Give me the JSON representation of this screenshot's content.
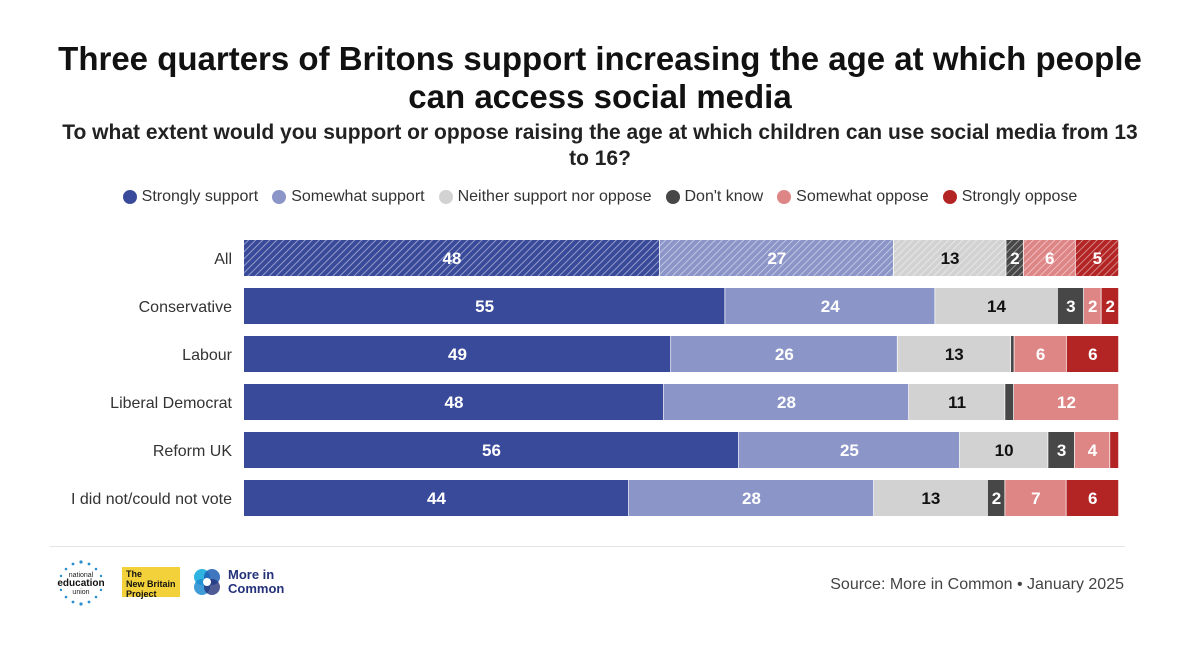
{
  "title": "Three quarters of Britons support increasing the age at which people can access social media",
  "subtitle": "To what extent would you support or oppose raising the age at which children can use social media from 13 to 16?",
  "source": "Source: More in Common • January 2025",
  "logos": {
    "neu": [
      "national",
      "education",
      "union"
    ],
    "nbp": [
      "The",
      "New Britain",
      "Project"
    ],
    "mic": [
      "More in",
      "Common"
    ]
  },
  "chart_data": {
    "type": "bar",
    "orientation": "horizontal-stacked-100",
    "categories": [
      "All",
      "Conservative",
      "Labour",
      "Liberal Democrat",
      "Reform UK",
      "I did not/could not vote"
    ],
    "series": [
      {
        "name": "Strongly support",
        "color": "#3a4a9a",
        "values": [
          48,
          55,
          49,
          48,
          56,
          44
        ]
      },
      {
        "name": "Somewhat support",
        "color": "#8b95c8",
        "values": [
          27,
          24,
          26,
          28,
          25,
          28
        ]
      },
      {
        "name": "Neither support nor oppose",
        "color": "#d2d2d2",
        "values": [
          13,
          14,
          13,
          11,
          10,
          13
        ]
      },
      {
        "name": "Don't know",
        "color": "#474747",
        "values": [
          2,
          3,
          0.4,
          1,
          3,
          2
        ]
      },
      {
        "name": "Somewhat oppose",
        "color": "#de8585",
        "values": [
          6,
          2,
          6,
          12,
          4,
          7
        ]
      },
      {
        "name": "Strongly oppose",
        "color": "#b32525",
        "values": [
          5,
          2,
          6,
          0,
          1,
          6
        ]
      }
    ],
    "data_labels": [
      [
        "48",
        "27",
        "13",
        "2",
        "6",
        "5"
      ],
      [
        "55",
        "24",
        "14",
        "3",
        "2",
        "2"
      ],
      [
        "49",
        "26",
        "13",
        "",
        "6",
        "6"
      ],
      [
        "48",
        "28",
        "11",
        "",
        "12",
        ""
      ],
      [
        "56",
        "25",
        "10",
        "3",
        "4",
        ""
      ],
      [
        "44",
        "28",
        "13",
        "2",
        "7",
        "6"
      ]
    ],
    "label_colors": [
      "#ffffff",
      "#ffffff",
      "#111111",
      "#ffffff",
      "#ffffff",
      "#ffffff"
    ],
    "highlighted_row": "All",
    "xlim": [
      0,
      100
    ],
    "grid": false,
    "legend_position": "top"
  }
}
